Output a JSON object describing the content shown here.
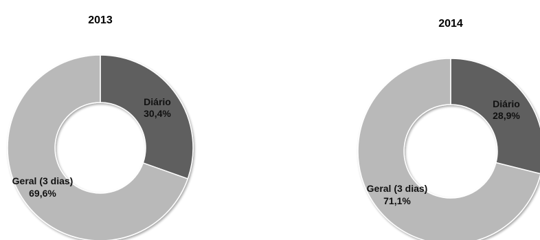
{
  "chart_data": [
    {
      "type": "pie",
      "title": "2013",
      "categories": [
        "Diário",
        "Geral (3 dias)"
      ],
      "values": [
        30.4,
        69.6
      ],
      "value_labels": [
        "30,4%",
        "69,6%"
      ],
      "colors": [
        "#5f5f5f",
        "#b9b9b9"
      ]
    },
    {
      "type": "pie",
      "title": "2014",
      "categories": [
        "Diário",
        "Geral (3 dias)"
      ],
      "values": [
        28.9,
        71.1
      ],
      "value_labels": [
        "28,9%",
        "71,1%"
      ],
      "colors": [
        "#5f5f5f",
        "#b9b9b9"
      ]
    }
  ]
}
